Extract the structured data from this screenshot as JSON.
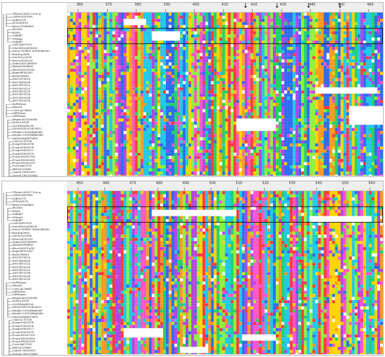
{
  "panels": [
    {
      "id": "top",
      "ruler": [
        "360",
        "370",
        "380",
        "390",
        "400",
        "410",
        "420",
        "430",
        "440",
        "450",
        "460"
      ],
      "arrows": 4,
      "highlight": "box"
    },
    {
      "id": "bottom",
      "ruler": [
        "450",
        "460",
        "470",
        "480",
        "490",
        "500",
        "510",
        "520",
        "530",
        "540",
        "550",
        "560"
      ],
      "arrows": 0,
      "highlight": "box"
    }
  ],
  "sequence_names": [
    "TRmen10002714m.g",
    "CARnf4287900",
    "ALB02370",
    "AT5G49570",
    "Bevin75189600",
    "MLI0Ze",
    "Bl2b5",
    "Gs8d87",
    "YtTese0",
    "Gs8d87",
    "OsD7g097420",
    "Zm00001a028420",
    "Hvmu MOREX 3HG0280400",
    "Bradlcg3990",
    "OsChr0.p4300",
    "Sevn20032100",
    "Sobic002G306500",
    "Maes00289800",
    "Macr04G291400",
    "Bsgn06002000",
    "Bs20036001",
    "SHO3570024",
    "SHO3630026",
    "SHO3670222",
    "SHO3670224",
    "SHO3670225",
    "SHO3670226",
    "SHO3670228",
    "SHO3670234",
    "SoPNGese",
    "Dapisj1",
    "CreG.g079800",
    "HiPNGese",
    "HiPNGase",
    "Mapalu003100060",
    "PpSe4.4G28",
    "GLUSAXg36116",
    "GSVIVG00101823001",
    "Nnabk.5.00446tg0060",
    "Nnabk.5.00558Bg0060",
    "GdIZxG6g0875600",
    "CiAU10.34728",
    "Eucgr00004376",
    "Eucgr00004376",
    "Eucgr00004377",
    "Eucgr00004379",
    "Prupe.6G041700",
    "Prupe.6G042000",
    "Prupe.6G042100",
    "Fvve.6g07230",
    "MDI20122890",
    "Cap00.20004420",
    "Glyma.19G247800",
    "Glyma.19G247600",
    "Medtr7g114840",
    "Lcja0002864"
  ],
  "palette": [
    "#ff3b3b",
    "#ffd400",
    "#22d06a",
    "#1fc8e8",
    "#2d6cf0",
    "#b044e8",
    "#ff54c8",
    "#ff9a1f",
    "#8cf23c",
    "#ffffff",
    "#9c9c9c"
  ]
}
